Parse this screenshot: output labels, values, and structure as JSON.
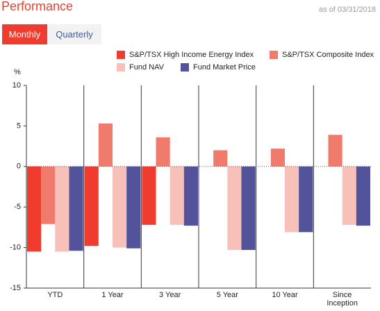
{
  "header": {
    "title": "Performance",
    "as_of": "as of 03/31/2018"
  },
  "tabs": [
    "Monthly",
    "Quarterly"
  ],
  "chart_data": {
    "type": "bar",
    "y_label": "%",
    "categories": [
      "YTD",
      "1 Year",
      "3 Year",
      "5 Year",
      "10 Year",
      "Since Inception"
    ],
    "series": [
      {
        "name": "S&P/TSX High Income Energy Index",
        "color": "#f03c2e",
        "values": [
          -10.5,
          -9.8,
          -7.2,
          null,
          null,
          null
        ]
      },
      {
        "name": "S&P/TSX Composite Index",
        "color": "#f07a6c",
        "values": [
          -7.1,
          5.3,
          3.6,
          2.0,
          2.2,
          3.9
        ]
      },
      {
        "name": "Fund NAV",
        "color": "#f7c0b8",
        "values": [
          -10.5,
          -10.0,
          -7.2,
          -10.3,
          -8.1,
          -7.2
        ]
      },
      {
        "name": "Fund Market Price",
        "color": "#53539b",
        "values": [
          -10.4,
          -10.1,
          -7.3,
          -10.3,
          -8.1,
          -7.3
        ]
      }
    ],
    "ylim": [
      -15,
      10
    ],
    "yticks": [
      -15,
      -10,
      -5,
      0,
      5,
      10
    ],
    "legend": "top-right"
  }
}
